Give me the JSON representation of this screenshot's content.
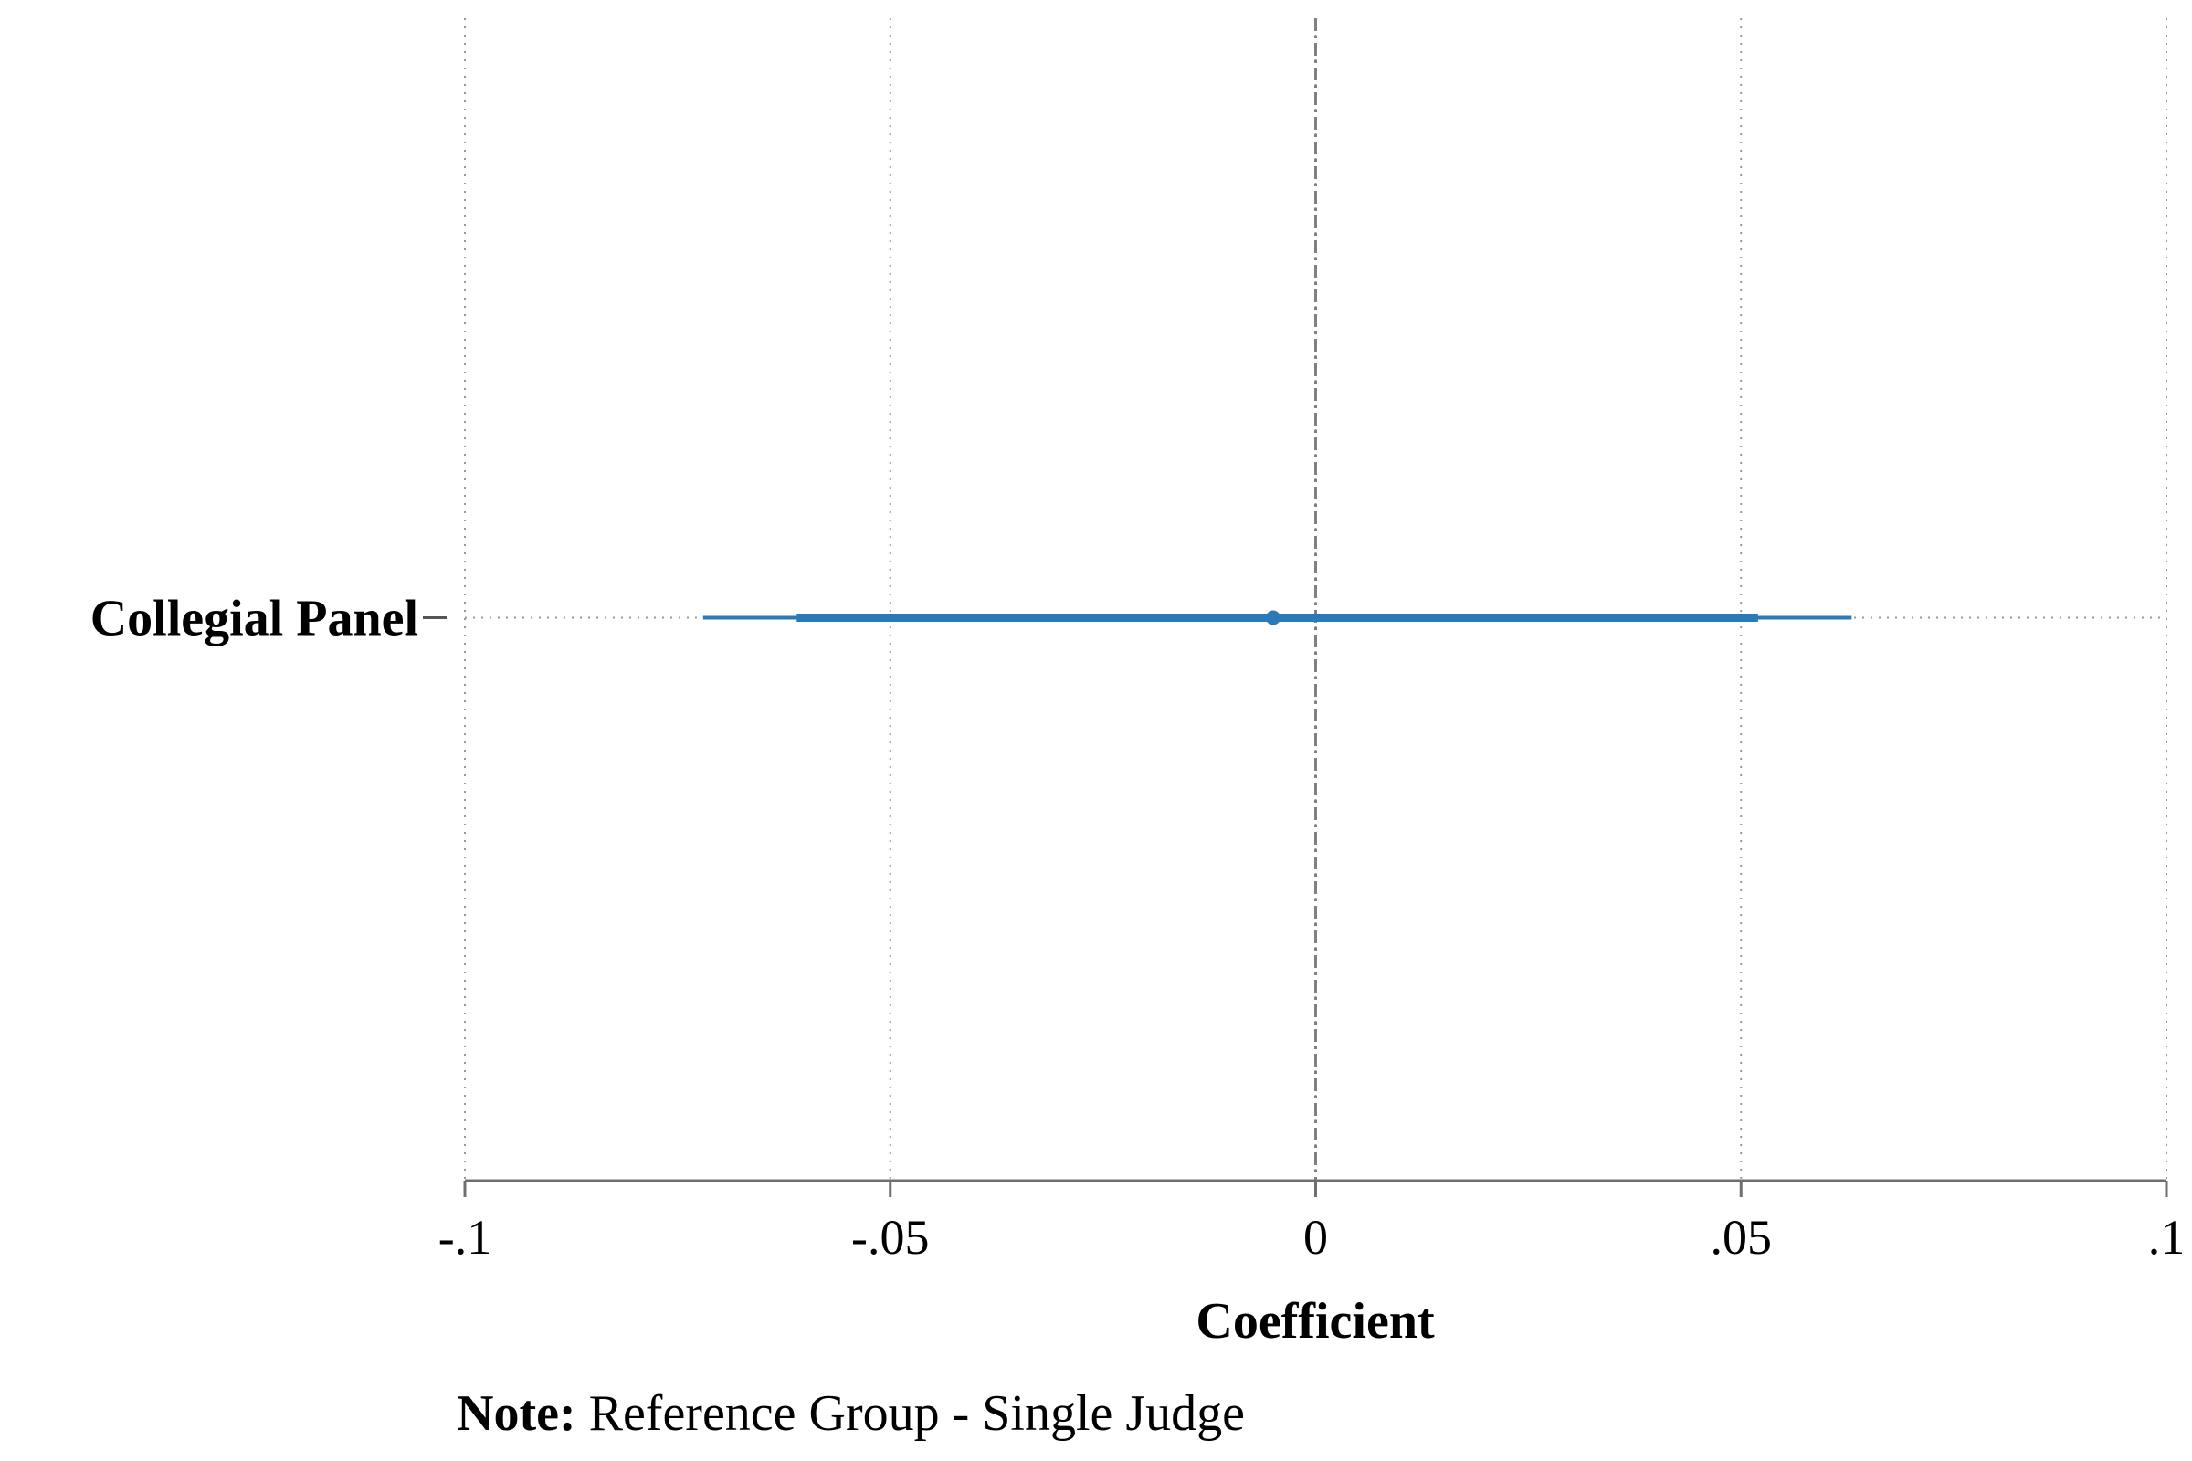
{
  "chart_data": {
    "type": "coefficient_plot",
    "title": "",
    "xlabel": "Coefficient",
    "xlim": [
      -0.1,
      0.1
    ],
    "x_ticks": [
      {
        "value": -0.1,
        "label": "-.1"
      },
      {
        "value": -0.05,
        "label": "-.05"
      },
      {
        "value": 0,
        "label": "0"
      },
      {
        "value": 0.05,
        "label": ".05"
      },
      {
        "value": 0.1,
        "label": ".1"
      }
    ],
    "grid": "vertical dotted at x ticks; horizontal dotted at coefficient",
    "reference_line": {
      "x": 0,
      "style": "dashed",
      "color": "#808080"
    },
    "color": "#2a7ab9",
    "coefficients": [
      {
        "label": "Collegial Panel",
        "estimate": -0.005,
        "ci_inner": [
          -0.061,
          0.052
        ],
        "ci_outer": [
          -0.072,
          0.063
        ]
      }
    ]
  },
  "note": {
    "bold_prefix": "Note:",
    "text": " Reference Group - Single Judge"
  }
}
